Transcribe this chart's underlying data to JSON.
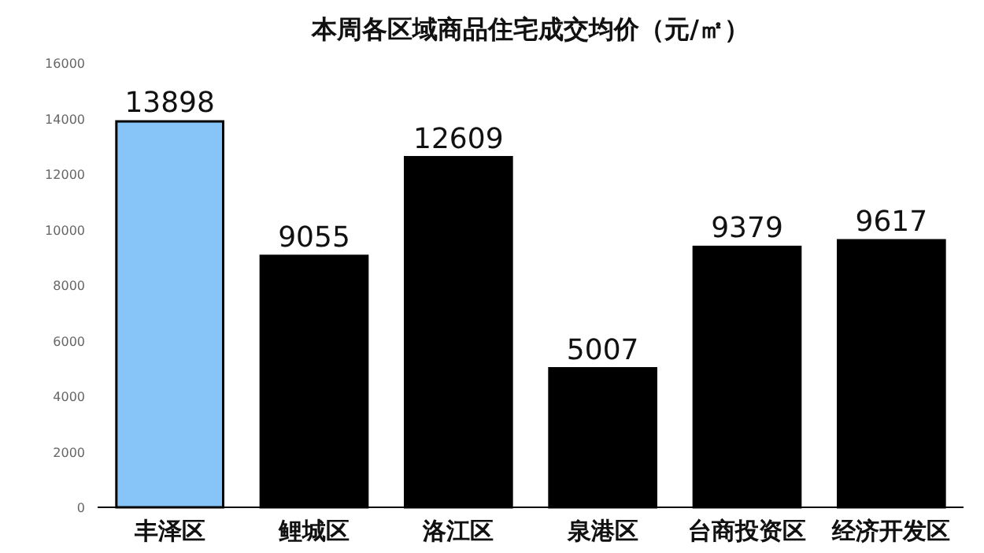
{
  "chart_data": {
    "type": "bar",
    "title": "本周各区域商品住宅成交均价（元/㎡）",
    "categories": [
      "丰泽区",
      "鲤城区",
      "洛江区",
      "泉港区",
      "台商投资区",
      "经济开发区"
    ],
    "values": [
      13898,
      9055,
      12609,
      5007,
      9379,
      9617
    ],
    "colors": [
      "#87c4f8",
      "#000000",
      "#000000",
      "#000000",
      "#000000",
      "#000000"
    ],
    "ylim": [
      0,
      16000
    ],
    "yticks": [
      0,
      2000,
      4000,
      6000,
      8000,
      10000,
      12000,
      14000,
      16000
    ],
    "data_labels": true
  }
}
